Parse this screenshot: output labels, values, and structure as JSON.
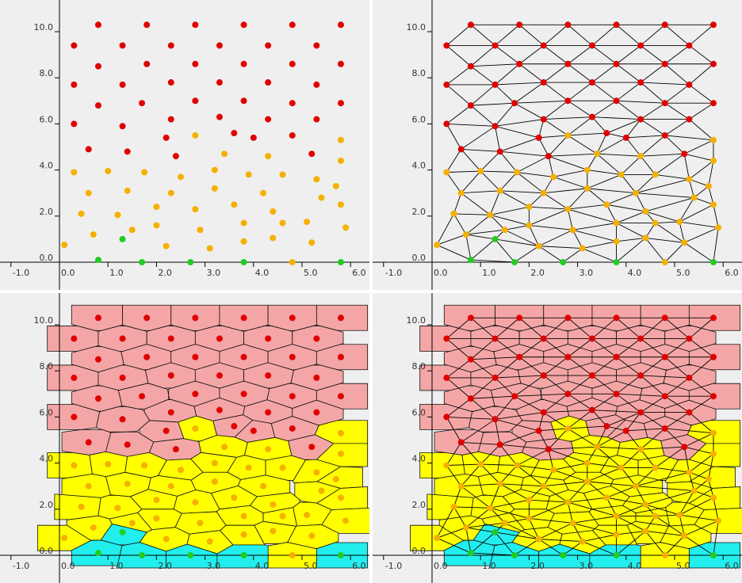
{
  "colors": {
    "background": "#efefef",
    "axis": "#000000",
    "edge": "#000000",
    "point_red": "#e00000",
    "point_orange": "#f5b000",
    "point_green": "#22cc22",
    "cell_red": "#f4a6a6",
    "cell_yellow": "#ffff00",
    "cell_cyan": "#22eeee"
  },
  "chart_data": [
    {
      "type": "scatter",
      "view": "points",
      "xlim": [
        -1.0,
        6.2
      ],
      "ylim": [
        -0.4,
        11.0
      ],
      "grid": false,
      "x_ticks": [
        "-1.0",
        "0.0",
        "1.0",
        "2.0",
        "3.0",
        "4.0",
        "5.0",
        "6.0"
      ],
      "x_tick_values": [
        -1,
        0,
        1,
        2,
        3,
        4,
        5,
        6
      ],
      "y_ticks": [
        "0.0",
        "2.0",
        "4.0",
        "6.0",
        "8.0",
        "10.0"
      ],
      "y_tick_values": [
        0,
        2,
        4,
        6,
        8,
        10
      ]
    },
    {
      "type": "scatter",
      "view": "triangulation",
      "xlim": [
        -1.0,
        6.2
      ],
      "ylim": [
        -0.4,
        11.0
      ],
      "grid": false,
      "x_ticks": [
        "-1.0",
        "0.0",
        "1.0",
        "2.0",
        "3.0",
        "4.0",
        "5.0",
        "6.0"
      ],
      "x_tick_values": [
        -1,
        0,
        1,
        2,
        3,
        4,
        5,
        6
      ],
      "y_ticks": [
        "0.0",
        "2.0",
        "4.0",
        "6.0",
        "8.0",
        "10.0"
      ],
      "y_tick_values": [
        0,
        2,
        4,
        6,
        8,
        10
      ]
    },
    {
      "type": "scatter",
      "view": "voronoi",
      "xlim": [
        -1.0,
        6.2
      ],
      "ylim": [
        -0.4,
        11.0
      ],
      "grid": false,
      "x_ticks": [
        "-1.0",
        "0.0",
        "1.0",
        "2.0",
        "3.0",
        "4.0",
        "5.0",
        "6.0"
      ],
      "x_tick_values": [
        -1,
        0,
        1,
        2,
        3,
        4,
        5,
        6
      ],
      "y_ticks": [
        "0.0",
        "2.0",
        "4.0",
        "6.0",
        "8.0",
        "10.0"
      ],
      "y_tick_values": [
        0,
        2,
        4,
        6,
        8,
        10
      ]
    },
    {
      "type": "scatter",
      "view": "voronoi-triangulation",
      "xlim": [
        -1.0,
        6.2
      ],
      "ylim": [
        -0.4,
        11.0
      ],
      "grid": false,
      "x_ticks": [
        "-1.0",
        "0.0",
        "1.0",
        "2.0",
        "3.0",
        "4.0",
        "5.0",
        "6.0"
      ],
      "x_tick_values": [
        -1,
        0,
        1,
        2,
        3,
        4,
        5,
        6
      ],
      "y_ticks": [
        "0.0",
        "2.0",
        "4.0",
        "6.0",
        "8.0",
        "10.0"
      ],
      "y_tick_values": [
        0,
        2,
        4,
        6,
        8,
        10
      ]
    }
  ],
  "points": {
    "red": [
      [
        0.8,
        10.3
      ],
      [
        1.8,
        10.3
      ],
      [
        2.8,
        10.3
      ],
      [
        3.8,
        10.3
      ],
      [
        4.8,
        10.3
      ],
      [
        5.8,
        10.3
      ],
      [
        0.3,
        9.4
      ],
      [
        1.3,
        9.4
      ],
      [
        2.3,
        9.4
      ],
      [
        3.3,
        9.4
      ],
      [
        4.3,
        9.4
      ],
      [
        5.3,
        9.4
      ],
      [
        0.8,
        8.5
      ],
      [
        1.8,
        8.6
      ],
      [
        2.8,
        8.6
      ],
      [
        3.8,
        8.6
      ],
      [
        4.8,
        8.6
      ],
      [
        5.8,
        8.6
      ],
      [
        0.3,
        7.7
      ],
      [
        1.3,
        7.7
      ],
      [
        2.3,
        7.8
      ],
      [
        3.3,
        7.8
      ],
      [
        4.3,
        7.8
      ],
      [
        5.3,
        7.7
      ],
      [
        0.8,
        6.8
      ],
      [
        1.7,
        6.9
      ],
      [
        2.8,
        7.0
      ],
      [
        3.8,
        7.0
      ],
      [
        4.8,
        6.9
      ],
      [
        5.8,
        6.9
      ],
      [
        0.3,
        6.0
      ],
      [
        1.3,
        5.9
      ],
      [
        2.3,
        6.2
      ],
      [
        3.3,
        6.3
      ],
      [
        4.3,
        6.2
      ],
      [
        5.3,
        6.2
      ],
      [
        3.6,
        5.6
      ],
      [
        4.0,
        5.4
      ],
      [
        0.6,
        4.9
      ],
      [
        1.4,
        4.8
      ],
      [
        2.2,
        5.4
      ],
      [
        2.4,
        4.6
      ],
      [
        4.8,
        5.5
      ],
      [
        5.2,
        4.7
      ]
    ],
    "orange": [
      [
        0.3,
        3.9
      ],
      [
        1.0,
        3.95
      ],
      [
        1.75,
        3.9
      ],
      [
        2.5,
        3.7
      ],
      [
        3.2,
        4.0
      ],
      [
        3.9,
        3.8
      ],
      [
        4.6,
        3.8
      ],
      [
        5.3,
        3.6
      ],
      [
        0.6,
        3.0
      ],
      [
        1.4,
        3.1
      ],
      [
        2.3,
        3.0
      ],
      [
        3.2,
        3.2
      ],
      [
        4.2,
        3.0
      ],
      [
        5.7,
        3.3
      ],
      [
        0.45,
        2.1
      ],
      [
        1.2,
        2.05
      ],
      [
        2.0,
        2.4
      ],
      [
        2.8,
        2.3
      ],
      [
        3.6,
        2.5
      ],
      [
        4.4,
        2.2
      ],
      [
        5.4,
        2.8
      ],
      [
        0.1,
        0.75
      ],
      [
        0.7,
        1.2
      ],
      [
        1.5,
        1.4
      ],
      [
        2.0,
        1.6
      ],
      [
        2.9,
        1.4
      ],
      [
        3.8,
        1.7
      ],
      [
        4.6,
        1.7
      ],
      [
        5.1,
        1.75
      ],
      [
        5.9,
        1.5
      ],
      [
        2.2,
        0.7
      ],
      [
        3.1,
        0.6
      ],
      [
        3.8,
        0.9
      ],
      [
        4.4,
        1.05
      ],
      [
        4.8,
        0.0
      ],
      [
        5.2,
        0.85
      ],
      [
        5.8,
        5.3
      ],
      [
        5.8,
        4.4
      ],
      [
        5.8,
        2.5
      ],
      [
        2.8,
        5.5
      ],
      [
        3.4,
        4.7
      ],
      [
        4.3,
        4.6
      ]
    ],
    "green": [
      [
        0.8,
        0.1
      ],
      [
        1.3,
        1.0
      ],
      [
        1.7,
        0.0
      ],
      [
        2.7,
        0.0
      ],
      [
        3.8,
        0.0
      ],
      [
        5.8,
        0.0
      ]
    ]
  }
}
